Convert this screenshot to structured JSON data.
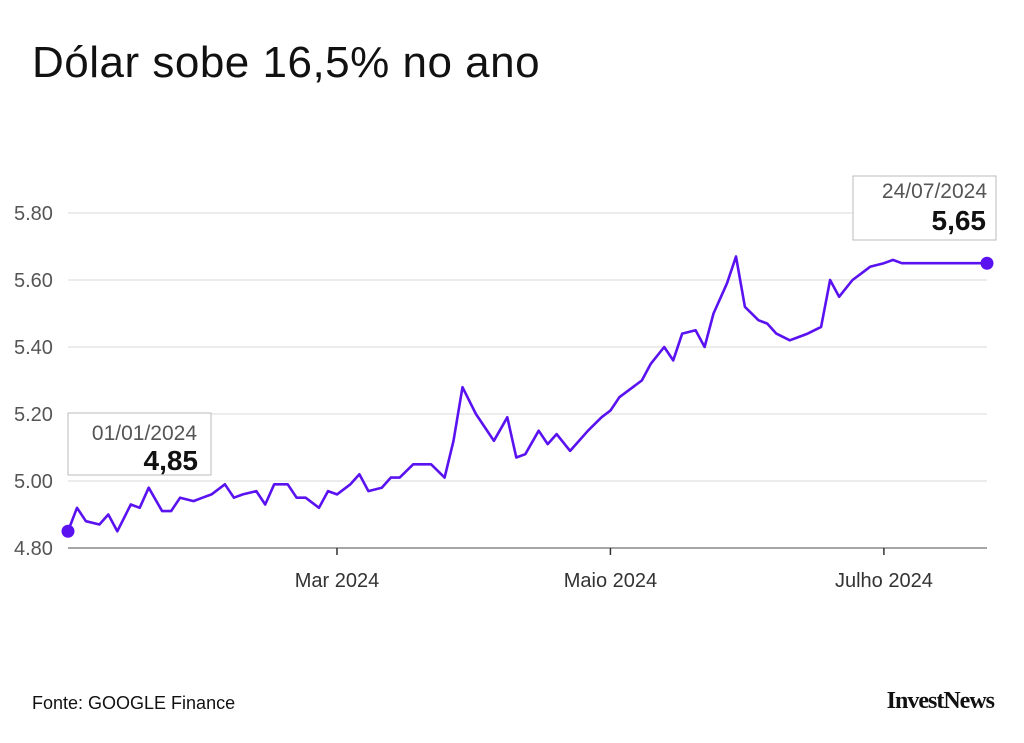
{
  "title": "Dólar sobe 16,5% no ano",
  "source": "Fonte: GOOGLE Finance",
  "brand": "InvestNews",
  "colors": {
    "line": "#5a12f0",
    "grid": "#d9d9d9",
    "axis": "#888888"
  },
  "chart_data": {
    "type": "line",
    "title": "Dólar sobe 16,5% no ano",
    "xlabel": "",
    "ylabel": "",
    "ylim": [
      4.8,
      5.86
    ],
    "y_ticks": [
      "4.80",
      "5.00",
      "5.20",
      "5.40",
      "5.60",
      "5.80"
    ],
    "x_ticks": [
      {
        "date": "2024-03-01",
        "label": "Mar 2024"
      },
      {
        "date": "2024-05-01",
        "label": "Maio 2024"
      },
      {
        "date": "2024-07-01",
        "label": "Julho 2024"
      }
    ],
    "xlim": [
      "2024-01-01",
      "2024-07-24"
    ],
    "grid": true,
    "series": [
      {
        "x": [
          "2024-01-01",
          "2024-01-03",
          "2024-01-05",
          "2024-01-08",
          "2024-01-10",
          "2024-01-12",
          "2024-01-15",
          "2024-01-17",
          "2024-01-19",
          "2024-01-22",
          "2024-01-24",
          "2024-01-26",
          "2024-01-29",
          "2024-01-31",
          "2024-02-02",
          "2024-02-05",
          "2024-02-07",
          "2024-02-09",
          "2024-02-12",
          "2024-02-14",
          "2024-02-16",
          "2024-02-19",
          "2024-02-21",
          "2024-02-23",
          "2024-02-26",
          "2024-02-28",
          "2024-03-01",
          "2024-03-04",
          "2024-03-06",
          "2024-03-08",
          "2024-03-11",
          "2024-03-13",
          "2024-03-15",
          "2024-03-18",
          "2024-03-20",
          "2024-03-22",
          "2024-03-25",
          "2024-03-27",
          "2024-03-29",
          "2024-04-01",
          "2024-04-03",
          "2024-04-05",
          "2024-04-08",
          "2024-04-10",
          "2024-04-12",
          "2024-04-15",
          "2024-04-17",
          "2024-04-19",
          "2024-04-22",
          "2024-04-24",
          "2024-04-26",
          "2024-04-29",
          "2024-05-01",
          "2024-05-03",
          "2024-05-06",
          "2024-05-08",
          "2024-05-10",
          "2024-05-13",
          "2024-05-15",
          "2024-05-17",
          "2024-05-20",
          "2024-05-22",
          "2024-05-24",
          "2024-05-27",
          "2024-05-29",
          "2024-05-31",
          "2024-06-03",
          "2024-06-05",
          "2024-06-07",
          "2024-06-10",
          "2024-06-12",
          "2024-06-14",
          "2024-06-17",
          "2024-06-19",
          "2024-06-21",
          "2024-06-24",
          "2024-06-26",
          "2024-06-28",
          "2024-07-01",
          "2024-07-03",
          "2024-07-05",
          "2024-07-08",
          "2024-07-10",
          "2024-07-12",
          "2024-07-15",
          "2024-07-17",
          "2024-07-19",
          "2024-07-22",
          "2024-07-24"
        ],
        "values": [
          4.85,
          4.92,
          4.88,
          4.87,
          4.9,
          4.85,
          4.93,
          4.92,
          4.98,
          4.91,
          4.91,
          4.95,
          4.94,
          4.95,
          4.96,
          4.99,
          4.95,
          4.96,
          4.97,
          4.93,
          4.99,
          4.99,
          4.95,
          4.95,
          4.92,
          4.97,
          4.96,
          4.99,
          5.02,
          4.97,
          4.98,
          5.01,
          5.01,
          5.05,
          5.05,
          5.05,
          5.01,
          5.12,
          5.28,
          5.2,
          5.16,
          5.12,
          5.19,
          5.07,
          5.08,
          5.15,
          5.11,
          5.14,
          5.09,
          5.12,
          5.15,
          5.19,
          5.21,
          5.25,
          5.28,
          5.3,
          5.35,
          5.4,
          5.36,
          5.44,
          5.45,
          5.4,
          5.5,
          5.59,
          5.67,
          5.52,
          5.48,
          5.47,
          5.44,
          5.42,
          5.43,
          5.44,
          5.46,
          5.6,
          5.55,
          5.6,
          5.62,
          5.64,
          5.65,
          5.66,
          5.65,
          5.65,
          5.65,
          5.65,
          5.65,
          5.65,
          5.65,
          5.65,
          5.65
        ]
      }
    ],
    "annotations": [
      {
        "date_label": "01/01/2024",
        "value_label": "4,85"
      },
      {
        "date_label": "24/07/2024",
        "value_label": "5,65"
      }
    ]
  }
}
